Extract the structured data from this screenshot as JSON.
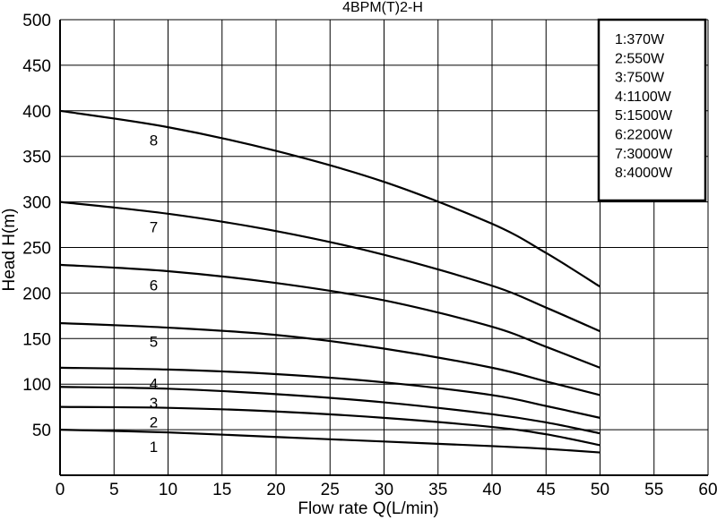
{
  "chart_data": {
    "type": "line",
    "title": "4BPM(T)2-H",
    "xlabel": "Flow rate Q(L/min)",
    "ylabel": "Head H(m)",
    "xlim": [
      0,
      60
    ],
    "ylim": [
      0,
      500
    ],
    "xticks": [
      "0",
      "5",
      "10",
      "15",
      "20",
      "25",
      "30",
      "35",
      "40",
      "45",
      "50",
      "55",
      "60"
    ],
    "yticks": [
      "50",
      "100",
      "150",
      "200",
      "250",
      "300",
      "350",
      "400",
      "450",
      "500"
    ],
    "grid": true,
    "legend_position": "top-right",
    "legend": [
      "1:370W",
      "2:550W",
      "3:750W",
      "4:1100W",
      "5:1500W",
      "6:2200W",
      "7:3000W",
      "8:4000W"
    ],
    "series": [
      {
        "name": "1",
        "x": [
          0,
          10,
          20,
          30,
          40,
          45,
          50
        ],
        "y": [
          50,
          47,
          42,
          37,
          32,
          29,
          25
        ]
      },
      {
        "name": "2",
        "x": [
          0,
          10,
          20,
          30,
          40,
          45,
          50
        ],
        "y": [
          75,
          74,
          70,
          63,
          53,
          45,
          33
        ]
      },
      {
        "name": "3",
        "x": [
          0,
          10,
          20,
          30,
          40,
          45,
          50
        ],
        "y": [
          97,
          95,
          89,
          80,
          67,
          58,
          46
        ]
      },
      {
        "name": "4",
        "x": [
          0,
          10,
          20,
          30,
          40,
          45,
          50
        ],
        "y": [
          118,
          116,
          111,
          102,
          88,
          76,
          63
        ]
      },
      {
        "name": "5",
        "x": [
          0,
          10,
          20,
          30,
          40,
          45,
          50
        ],
        "y": [
          167,
          162,
          154,
          139,
          118,
          103,
          88
        ]
      },
      {
        "name": "6",
        "x": [
          0,
          10,
          20,
          30,
          40,
          45,
          50
        ],
        "y": [
          231,
          224,
          211,
          192,
          163,
          141,
          118
        ]
      },
      {
        "name": "7",
        "x": [
          0,
          10,
          20,
          30,
          40,
          45,
          50
        ],
        "y": [
          300,
          287,
          268,
          242,
          208,
          184,
          158
        ]
      },
      {
        "name": "8",
        "x": [
          0,
          10,
          20,
          30,
          40,
          45,
          50
        ],
        "y": [
          400,
          382,
          356,
          322,
          276,
          244,
          207
        ]
      }
    ]
  }
}
